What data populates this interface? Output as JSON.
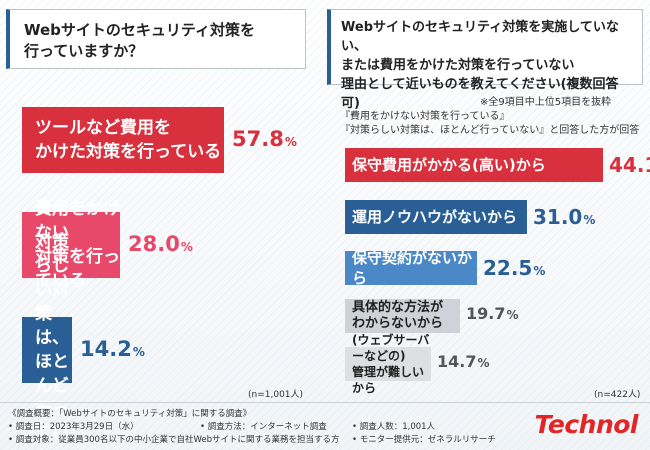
{
  "left": {
    "question": "Webサイトのセキュリティ対策を\n行っていますか？",
    "sample": "(n=1,001人)"
  },
  "right": {
    "question": "Webサイトのセキュリティ対策を実施していない、\nまたは費用をかけた対策を行っていない\n理由として近いものを教えてください(複数回答可)",
    "note_top": "※全9項目中上位5項目を抜粋",
    "note_sub": "『費用をかけない対策を行っている』\n『対策らしい対策は、ほとんど行っていない』と回答した方が回答",
    "sample": "(n=422人)"
  },
  "colors": {
    "dark_red": "#d9303e",
    "pink": "#e8496a",
    "navy": "#2a5f95",
    "steel_blue": "#4a88c7",
    "light_blue": "#7fb2de",
    "light_gray": "#cfd3d7",
    "gray": "#dde0e3"
  },
  "footer": {
    "title": "《調査概要：「Webサイトのセキュリティ対策」に関する調査》",
    "date": "• 調査日：2023年3月29日（水）",
    "method": "• 調査方法：インターネット調査",
    "count": "• 調査人数：1,001人",
    "target": "• 調査対象：従業員300名以下の中小企業で自社Webサイトに関する業務を担当する方",
    "monitor": "• モニター提供元：ゼネラルリサーチ",
    "logo": "Technol"
  },
  "chart_data": [
    {
      "type": "bar",
      "orientation": "horizontal",
      "title": "Webサイトのセキュリティ対策を行っていますか？",
      "categories": [
        "ツールなど費用を\nかけた対策を行っている",
        "費用をかけない\n対策を行っている",
        "対策らしい対策は、\nほとんど行っていない"
      ],
      "values": [
        57.8,
        28.0,
        14.2
      ],
      "labels": [
        "57.8",
        "28.0",
        "14.2"
      ],
      "unit": "%"
    },
    {
      "type": "bar",
      "orientation": "horizontal",
      "title": "Webサイトのセキュリティ対策を実施していない、または費用をかけた対策を行っていない理由として近いものを教えてください(複数回答可)",
      "categories": [
        "保守費用がかかる(高い)から",
        "運用ノウハウがないから",
        "保守契約がないから",
        "具体的な方法が\nわからないから",
        "(ウェブサーバーなどの)\n管理が難しいから"
      ],
      "values": [
        44.1,
        31.0,
        22.5,
        19.7,
        14.7
      ],
      "labels": [
        "44.1",
        "31.0",
        "22.5",
        "19.7",
        "14.7"
      ],
      "unit": "%"
    }
  ]
}
